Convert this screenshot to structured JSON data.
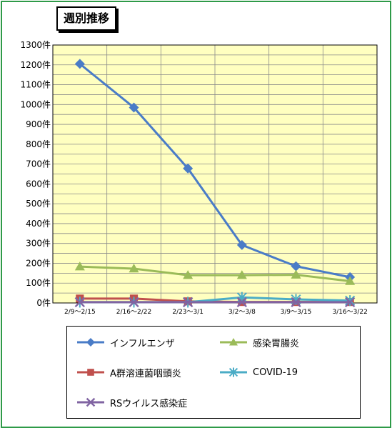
{
  "title": "週別推移",
  "chart_data": {
    "type": "line",
    "title": "週別推移",
    "categories": [
      "2/9〜2/15",
      "2/16〜2/22",
      "2/23〜3/1",
      "3/2〜3/8",
      "3/9〜3/15",
      "3/16〜3/22"
    ],
    "y_tick_labels": [
      "0件",
      "100件",
      "200件",
      "300件",
      "400件",
      "500件",
      "600件",
      "700件",
      "800件",
      "900件",
      "1000件",
      "1100件",
      "1200件",
      "1300件"
    ],
    "ylim": [
      0,
      1300
    ],
    "minor_step": 50,
    "grid": true,
    "plot_background": "#ffffc0",
    "legend_position": "bottom",
    "series": [
      {
        "name": "インフルエンザ",
        "color": "#4a7cc7",
        "marker": "diamond",
        "values": [
          1205,
          985,
          678,
          292,
          185,
          130
        ]
      },
      {
        "name": "感染胃腸炎",
        "color": "#9bbb59",
        "marker": "triangle",
        "values": [
          183,
          173,
          140,
          140,
          142,
          110
        ]
      },
      {
        "name": "A群溶連菌咽頭炎",
        "color": "#c0504d",
        "marker": "square",
        "values": [
          22,
          22,
          8,
          5,
          5,
          5
        ]
      },
      {
        "name": "COVID-19",
        "color": "#4bacc6",
        "marker": "star",
        "values": [
          4,
          4,
          4,
          28,
          18,
          12
        ]
      },
      {
        "name": "RSウイルス感染症",
        "color": "#8064a2",
        "marker": "x",
        "values": [
          4,
          4,
          4,
          4,
          4,
          4
        ]
      }
    ]
  }
}
